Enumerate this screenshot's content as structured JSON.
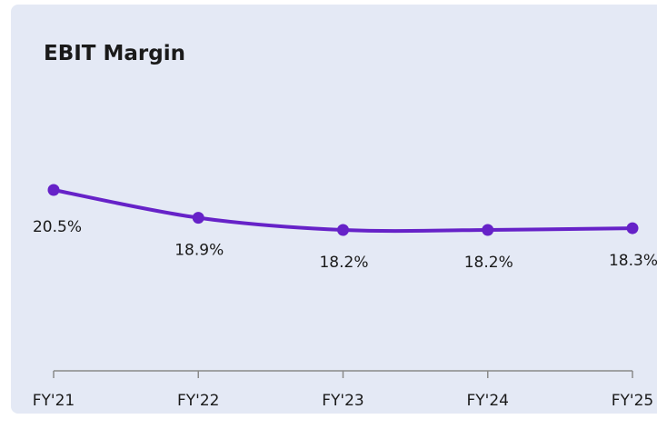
{
  "chart_data": {
    "type": "line",
    "title": "EBIT Margin",
    "categories": [
      "FY'21",
      "FY'22",
      "FY'23",
      "FY'24",
      "FY'25"
    ],
    "series": [
      {
        "name": "EBIT Margin",
        "color": "#6622c8",
        "values": [
          20.5,
          18.9,
          18.2,
          18.2,
          18.3
        ],
        "value_labels": [
          "20.5%",
          "18.9%",
          "18.2%",
          "18.2%",
          "18.3%"
        ]
      }
    ]
  }
}
